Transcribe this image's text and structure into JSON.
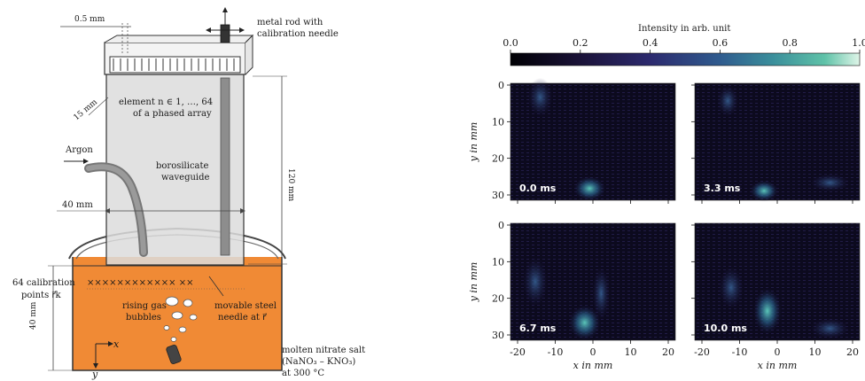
{
  "left_diagram": {
    "dim_top": "0.5 mm",
    "dim_side": "15 mm",
    "element_line1": "element n ∈ 1, …, 64",
    "element_line2": "of a phased array",
    "rod_line1": "metal rod with",
    "rod_line2": "calibration needle",
    "argon": "Argon",
    "waveguide_line1": "borosilicate",
    "waveguide_line2": "waveguide",
    "dim_width": "40 mm",
    "dim_height": "120 mm",
    "calib_line1": "64 calibration",
    "calib_line2": "points r⃗k",
    "crosses": "××××××××××××  ××",
    "bubbles_line1": "rising gas",
    "bubbles_line2": "bubbles",
    "needle_line1": "movable steel",
    "needle_line2": "needle at r⃗",
    "dim_depth": "40 mm",
    "axis_x": "x",
    "axis_y": "y",
    "salt_line1": "molten nitrate salt",
    "salt_line2": "(NaNO₃ – KNO₃)",
    "salt_line3": "at 300 °C"
  },
  "colorbar": {
    "title": "Intensity in arb. unit",
    "ticks": [
      "0.0",
      "0.2",
      "0.4",
      "0.6",
      "0.8",
      "1.0"
    ],
    "colors": [
      "#000004",
      "#1a1238",
      "#2c2a6e",
      "#2f5b8e",
      "#3a8e9b",
      "#5fc2a8",
      "#dff5e8"
    ]
  },
  "panels": [
    {
      "time": "0.0 ms"
    },
    {
      "time": "3.3 ms"
    },
    {
      "time": "6.7 ms"
    },
    {
      "time": "10.0 ms"
    }
  ],
  "axes": {
    "ylabel": "y in mm",
    "xlabel": "x in mm",
    "yticks": [
      "0",
      "10",
      "20",
      "30"
    ],
    "xticks": [
      "-20",
      "-10",
      "0",
      "10",
      "20"
    ]
  }
}
